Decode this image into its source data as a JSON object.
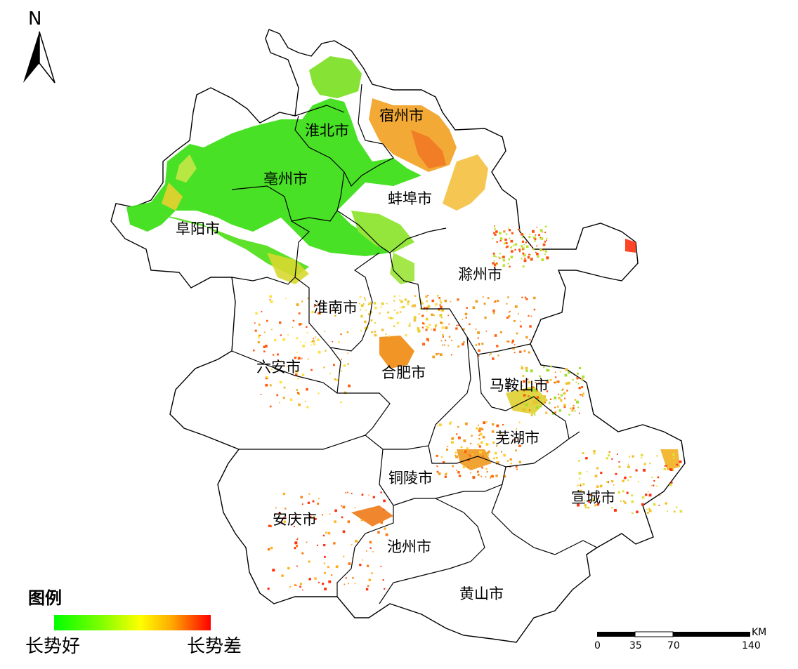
{
  "map": {
    "north_label": "N",
    "cities": [
      {
        "id": "suzhou",
        "name": "宿州市"
      },
      {
        "id": "huaibei",
        "name": "淮北市"
      },
      {
        "id": "bozhou",
        "name": "亳州市"
      },
      {
        "id": "bengbu",
        "name": "蚌埠市"
      },
      {
        "id": "fuyang",
        "name": "阜阳市"
      },
      {
        "id": "chuzhou",
        "name": "滁州市"
      },
      {
        "id": "huainan",
        "name": "淮南市"
      },
      {
        "id": "luan",
        "name": "六安市"
      },
      {
        "id": "hefei",
        "name": "合肥市"
      },
      {
        "id": "maanshan",
        "name": "马鞍山市"
      },
      {
        "id": "wuhu",
        "name": "芜湖市"
      },
      {
        "id": "tongling",
        "name": "铜陵市"
      },
      {
        "id": "xuancheng",
        "name": "宣城市"
      },
      {
        "id": "anqing",
        "name": "安庆市"
      },
      {
        "id": "chizhou",
        "name": "池州市"
      },
      {
        "id": "huangshan",
        "name": "黄山市"
      }
    ],
    "colors": {
      "good": "#00ff00",
      "mid": "#ffff00",
      "bad": "#ff0000",
      "boundary": "#000000"
    }
  },
  "legend": {
    "title": "图例",
    "low_label": "长势好",
    "high_label": "长势差"
  },
  "scale_bar": {
    "unit": "KM",
    "ticks": [
      "0",
      "35",
      "70",
      "140"
    ]
  }
}
